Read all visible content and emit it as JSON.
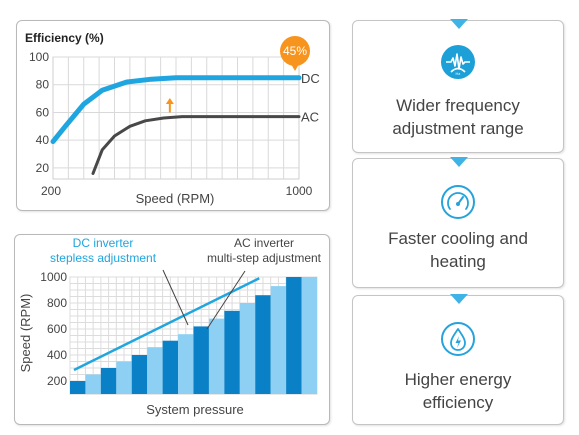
{
  "chart_data": [
    {
      "type": "line",
      "ylabel": "Efficiency (%)",
      "xlabel": "Speed (RPM)",
      "xlim": [
        200,
        1000
      ],
      "ylim": [
        12,
        100
      ],
      "x_ticks": [
        "200",
        "1000"
      ],
      "y_ticks": [
        "100",
        "80",
        "60",
        "40",
        "20"
      ],
      "series": [
        {
          "name": "DC",
          "color": "#1fa5df",
          "x": [
            200,
            240,
            300,
            360,
            440,
            520,
            600,
            700,
            800,
            900,
            1000
          ],
          "y": [
            39,
            50,
            66,
            76,
            82,
            84,
            85,
            85,
            85,
            85,
            85
          ]
        },
        {
          "name": "AC",
          "color": "#484848",
          "x": [
            330,
            360,
            400,
            450,
            500,
            560,
            620,
            700,
            800,
            900,
            1000
          ],
          "y": [
            16,
            33,
            43,
            50,
            54,
            56,
            57,
            57,
            57,
            57,
            57
          ]
        }
      ],
      "badge": "45%",
      "badge_color": "#f7941d",
      "annotation": "up-arrow",
      "annotation_color": "#f7941d",
      "grid": true
    },
    {
      "type": "bar",
      "ylabel": "Speed (RPM)",
      "xlabel": "System pressure",
      "ylim": [
        100,
        1000
      ],
      "y_ticks": [
        "1000",
        "800",
        "600",
        "400",
        "200"
      ],
      "bar_values": [
        200,
        250,
        300,
        350,
        400,
        460,
        510,
        560,
        620,
        680,
        740,
        800,
        860,
        930,
        1000,
        1000
      ],
      "bar_colors": [
        "#0a80c6",
        "#8dd0f3"
      ],
      "line": {
        "from": [
          0,
          285
        ],
        "to": [
          12,
          990
        ],
        "color": "#1fa5df"
      },
      "label_dc": "DC inverter\nstepless adjustment",
      "label_dc_color": "#1fa5df",
      "label_ac": "AC inverter\nmulti-step adjustment",
      "grid": true
    }
  ],
  "features": [
    {
      "label": "Wider frequency\nadjustment range",
      "icon": "frequency-wave-icon"
    },
    {
      "label": "Faster cooling and\nheating",
      "icon": "speedometer-gauge-icon"
    },
    {
      "label": "Higher energy\nefficiency",
      "icon": "water-drop-energy-icon"
    }
  ],
  "accent_color": "#1fa5df"
}
